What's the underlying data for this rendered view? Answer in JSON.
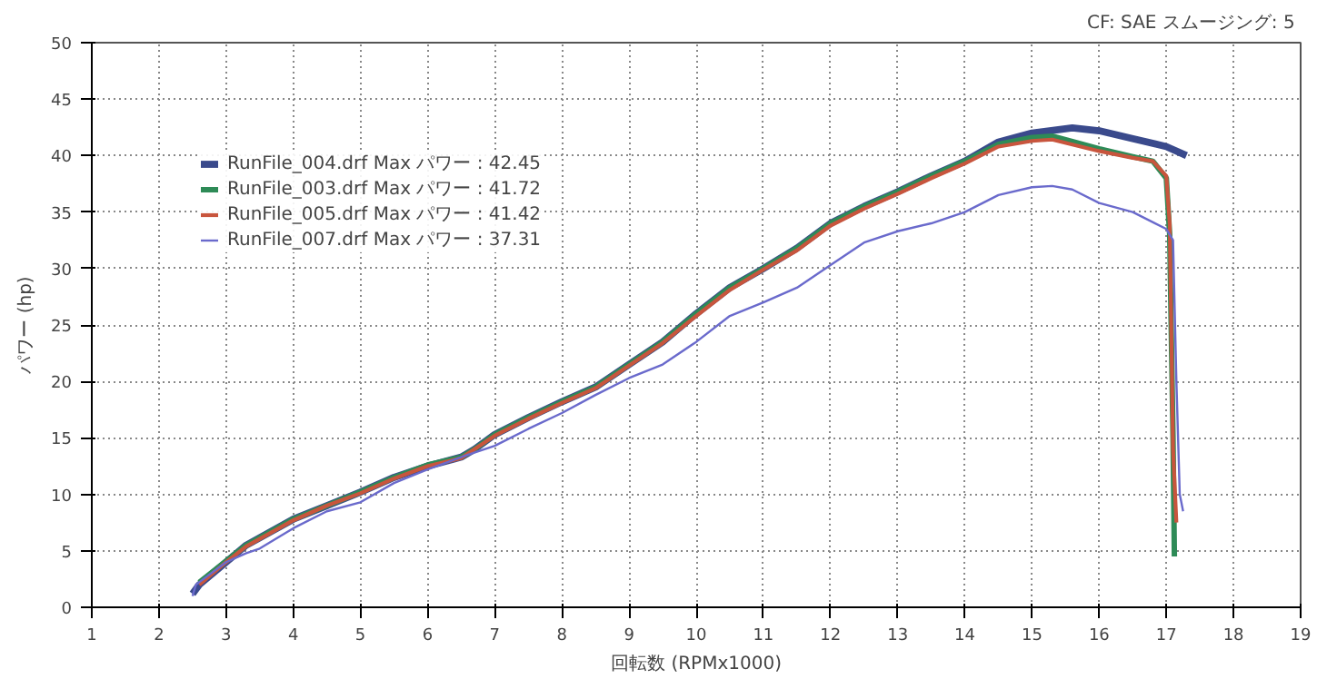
{
  "chart_data": {
    "type": "line",
    "xlabel": "回転数 (RPMx1000)",
    "ylabel": "パワー (hp)",
    "annotations": [
      "CF: SAE  スムージング: 5"
    ],
    "xlim": [
      1,
      19
    ],
    "ylim": [
      0,
      50
    ],
    "xticks": [
      1,
      2,
      3,
      4,
      5,
      6,
      7,
      8,
      9,
      10,
      11,
      12,
      13,
      14,
      15,
      16,
      17,
      18,
      19
    ],
    "yticks": [
      0,
      5,
      10,
      15,
      20,
      25,
      30,
      35,
      40,
      45,
      50
    ],
    "grid": true,
    "legend": "top left",
    "line_style": "solid",
    "series": [
      {
        "name": "RunFile_004.drf Max パワー : 42.45",
        "color": "#3a4a8c",
        "x": [
          2.5,
          2.6,
          3,
          3.3,
          4,
          4.5,
          5,
          5.5,
          6,
          6.5,
          6.7,
          7,
          7.5,
          8,
          8.5,
          9,
          9.5,
          10,
          10.5,
          11,
          11.5,
          12,
          12.5,
          13,
          13.5,
          14,
          14.5,
          15,
          15.6,
          16,
          16.5,
          17,
          17.3
        ],
        "values": [
          1.2,
          2,
          4,
          5.5,
          7.8,
          9,
          10.2,
          11.5,
          12.5,
          13.3,
          14,
          15.3,
          16.8,
          18.2,
          19.5,
          21.5,
          23.5,
          26,
          28.3,
          30,
          31.8,
          34,
          35.5,
          36.8,
          38.2,
          39.5,
          41.2,
          42,
          42.45,
          42.2,
          41.5,
          40.8,
          40
        ]
      },
      {
        "name": "RunFile_003.drf Max パワー : 41.72",
        "color": "#2e8b57",
        "x": [
          2.6,
          3,
          3.3,
          4,
          4.5,
          5,
          5.5,
          6,
          6.5,
          6.7,
          7,
          7.5,
          8,
          8.5,
          9,
          9.5,
          10,
          10.5,
          11,
          11.5,
          12,
          12.5,
          13,
          13.5,
          14,
          14.5,
          15,
          15.3,
          16,
          16.5,
          16.8,
          17,
          17.05,
          17.1,
          17.12
        ],
        "values": [
          2.2,
          4.1,
          5.5,
          7.8,
          9,
          10.2,
          11.5,
          12.6,
          13.3,
          14,
          15.3,
          16.8,
          18.2,
          19.5,
          21.5,
          23.5,
          26,
          28.3,
          30,
          31.8,
          34,
          35.5,
          36.8,
          38.2,
          39.5,
          41,
          41.6,
          41.72,
          40.6,
          39.9,
          39.5,
          38,
          33,
          15,
          4.5
        ]
      },
      {
        "name": "RunFile_005.drf Max パワー : 41.42",
        "color": "#c8553d",
        "x": [
          2.6,
          3,
          3.3,
          4,
          4.5,
          5,
          5.5,
          6,
          6.5,
          6.7,
          7,
          7.5,
          8,
          8.5,
          9,
          9.5,
          10,
          10.5,
          11,
          11.5,
          12,
          12.5,
          13,
          13.5,
          14,
          14.5,
          15,
          15.3,
          16,
          16.5,
          16.8,
          17,
          17.05,
          17.1,
          17.15
        ],
        "values": [
          2,
          4,
          5.4,
          7.7,
          9,
          10.1,
          11.4,
          12.5,
          13.2,
          14,
          15.2,
          16.7,
          18.1,
          19.4,
          21.4,
          23.4,
          25.8,
          28.1,
          29.9,
          31.6,
          33.8,
          35.3,
          36.6,
          38,
          39.3,
          40.8,
          41.3,
          41.42,
          40.4,
          39.8,
          39.5,
          38.2,
          34,
          14,
          7.5
        ]
      },
      {
        "name": "RunFile_007.drf Max パワー : 37.31",
        "color": "#6a6acc",
        "x": [
          2.5,
          2.55,
          3,
          3.3,
          3.5,
          4,
          4.5,
          5,
          5.5,
          6,
          6.5,
          7,
          7.5,
          8,
          8.5,
          9,
          9.5,
          10,
          10.5,
          11,
          11.5,
          12,
          12.5,
          13,
          13.5,
          14,
          14.5,
          15,
          15.3,
          15.6,
          16,
          16.5,
          17,
          17.1,
          17.15,
          17.2,
          17.25
        ],
        "values": [
          1,
          2,
          4,
          4.8,
          5.2,
          7,
          8.5,
          9.3,
          11,
          12.2,
          13.3,
          14.3,
          15.8,
          17.2,
          18.8,
          20.3,
          21.5,
          23.5,
          25.8,
          27,
          28.3,
          30.3,
          32.3,
          33.3,
          34,
          35,
          36.5,
          37.2,
          37.31,
          37,
          35.8,
          35,
          33.5,
          32.5,
          20,
          10,
          8.5
        ]
      }
    ]
  }
}
